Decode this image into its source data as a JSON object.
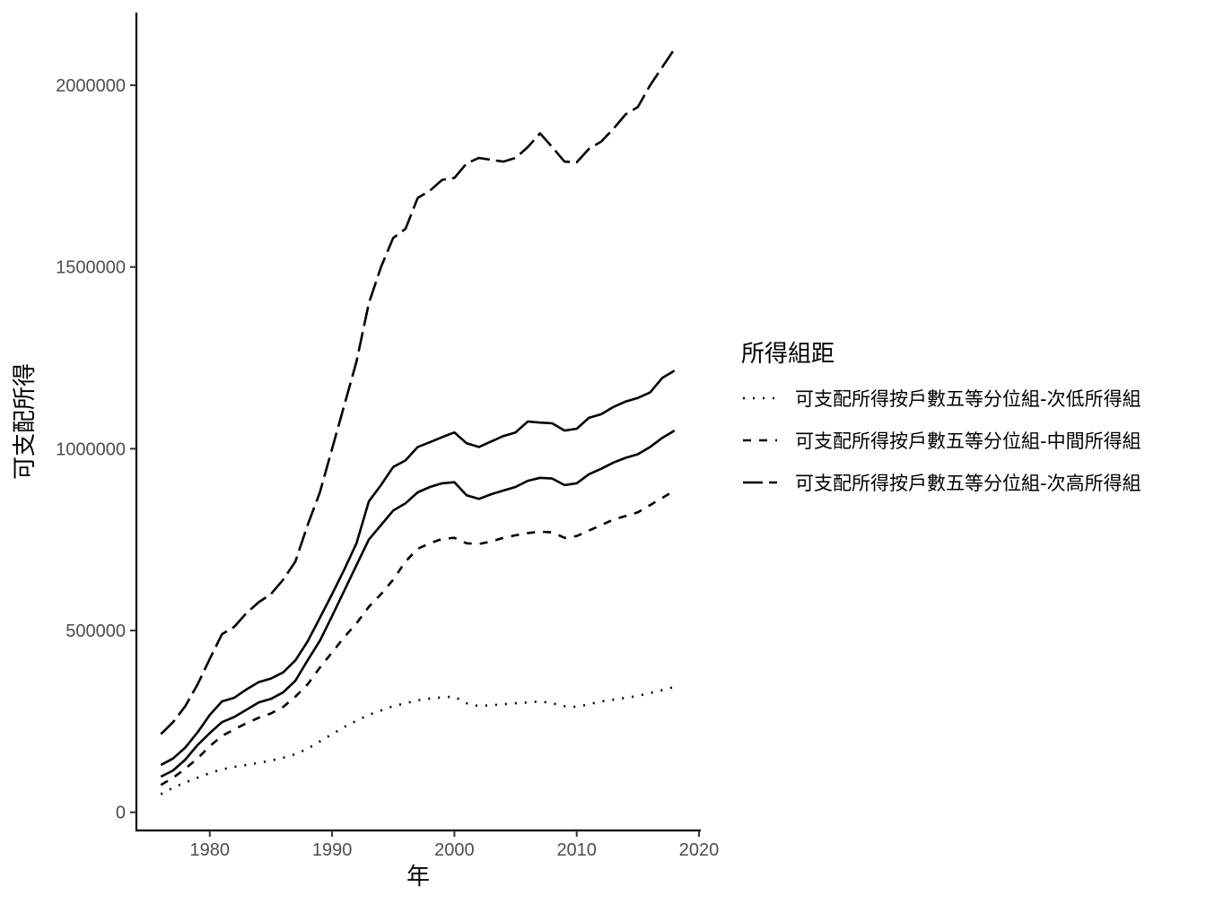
{
  "chart_data": {
    "type": "line",
    "xlabel": "年",
    "ylabel": "可支配所得",
    "xlim": [
      1974,
      2020
    ],
    "ylim": [
      -50000,
      2200000
    ],
    "xticks": [
      1980,
      1990,
      2000,
      2010,
      2020
    ],
    "yticks": [
      0,
      500000,
      1000000,
      1500000,
      2000000
    ],
    "x_tick_labels": [
      "1980",
      "1990",
      "2000",
      "2010",
      "2020"
    ],
    "y_tick_labels": [
      "0",
      "500000",
      "1000000",
      "1500000",
      "2000000"
    ],
    "grid": false,
    "legend": {
      "title": "所得組距",
      "position": "right"
    },
    "x": [
      1976,
      1977,
      1978,
      1979,
      1980,
      1981,
      1982,
      1983,
      1984,
      1985,
      1986,
      1987,
      1988,
      1989,
      1990,
      1991,
      1992,
      1993,
      1994,
      1995,
      1996,
      1997,
      1998,
      1999,
      2000,
      2001,
      2002,
      2003,
      2004,
      2005,
      2006,
      2007,
      2008,
      2009,
      2010,
      2011,
      2012,
      2013,
      2014,
      2015,
      2016,
      2017,
      2018
    ],
    "series": [
      {
        "name": "可支配所得按戶數五等分位組-次低所得組",
        "dash": "2,9",
        "values": [
          50000,
          68000,
          82000,
          95000,
          108000,
          118000,
          125000,
          130000,
          136000,
          142000,
          150000,
          160000,
          175000,
          195000,
          215000,
          235000,
          252000,
          268000,
          280000,
          292000,
          300000,
          308000,
          313000,
          316000,
          318000,
          300000,
          292000,
          295000,
          297000,
          300000,
          302000,
          305000,
          300000,
          292000,
          290000,
          297000,
          305000,
          310000,
          315000,
          320000,
          328000,
          336000,
          345000
        ]
      },
      {
        "name": "可支配所得按戶數五等分位組-中間所得組",
        "dash": "9,9",
        "values": [
          75000,
          95000,
          120000,
          148000,
          182000,
          210000,
          228000,
          245000,
          260000,
          272000,
          290000,
          318000,
          352000,
          398000,
          440000,
          482000,
          520000,
          565000,
          600000,
          640000,
          690000,
          725000,
          740000,
          752000,
          755000,
          740000,
          738000,
          745000,
          755000,
          762000,
          768000,
          772000,
          770000,
          755000,
          760000,
          775000,
          790000,
          805000,
          815000,
          825000,
          845000,
          865000,
          885000
        ]
      },
      {
        "name": "可支配所得按戶數五等分位組-次高所得組",
        "dash": "22,7",
        "values": [
          215000,
          248000,
          292000,
          352000,
          422000,
          490000,
          510000,
          548000,
          578000,
          600000,
          640000,
          690000,
          790000,
          880000,
          1000000,
          1120000,
          1240000,
          1400000,
          1500000,
          1580000,
          1605000,
          1690000,
          1710000,
          1740000,
          1745000,
          1785000,
          1800000,
          1795000,
          1790000,
          1800000,
          1830000,
          1868000,
          1830000,
          1790000,
          1788000,
          1825000,
          1845000,
          1880000,
          1920000,
          1940000,
          2000000,
          2050000,
          2100000
        ]
      },
      {
        "name": "",
        "dash": "",
        "values": [
          130000,
          148000,
          178000,
          220000,
          268000,
          305000,
          315000,
          338000,
          358000,
          368000,
          385000,
          418000,
          470000,
          535000,
          600000,
          668000,
          740000,
          855000,
          900000,
          950000,
          968000,
          1005000,
          1018000,
          1032000,
          1045000,
          1015000,
          1005000,
          1020000,
          1035000,
          1045000,
          1075000,
          1072000,
          1070000,
          1050000,
          1055000,
          1085000,
          1095000,
          1115000,
          1130000,
          1140000,
          1155000,
          1195000,
          1215000
        ]
      },
      {
        "name": "",
        "dash": "",
        "values": [
          98000,
          115000,
          145000,
          185000,
          218000,
          248000,
          262000,
          282000,
          302000,
          312000,
          330000,
          362000,
          418000,
          472000,
          540000,
          610000,
          680000,
          750000,
          790000,
          830000,
          850000,
          880000,
          895000,
          905000,
          908000,
          872000,
          862000,
          875000,
          885000,
          895000,
          912000,
          920000,
          918000,
          900000,
          905000,
          930000,
          945000,
          962000,
          975000,
          985000,
          1005000,
          1030000,
          1050000
        ]
      }
    ]
  }
}
